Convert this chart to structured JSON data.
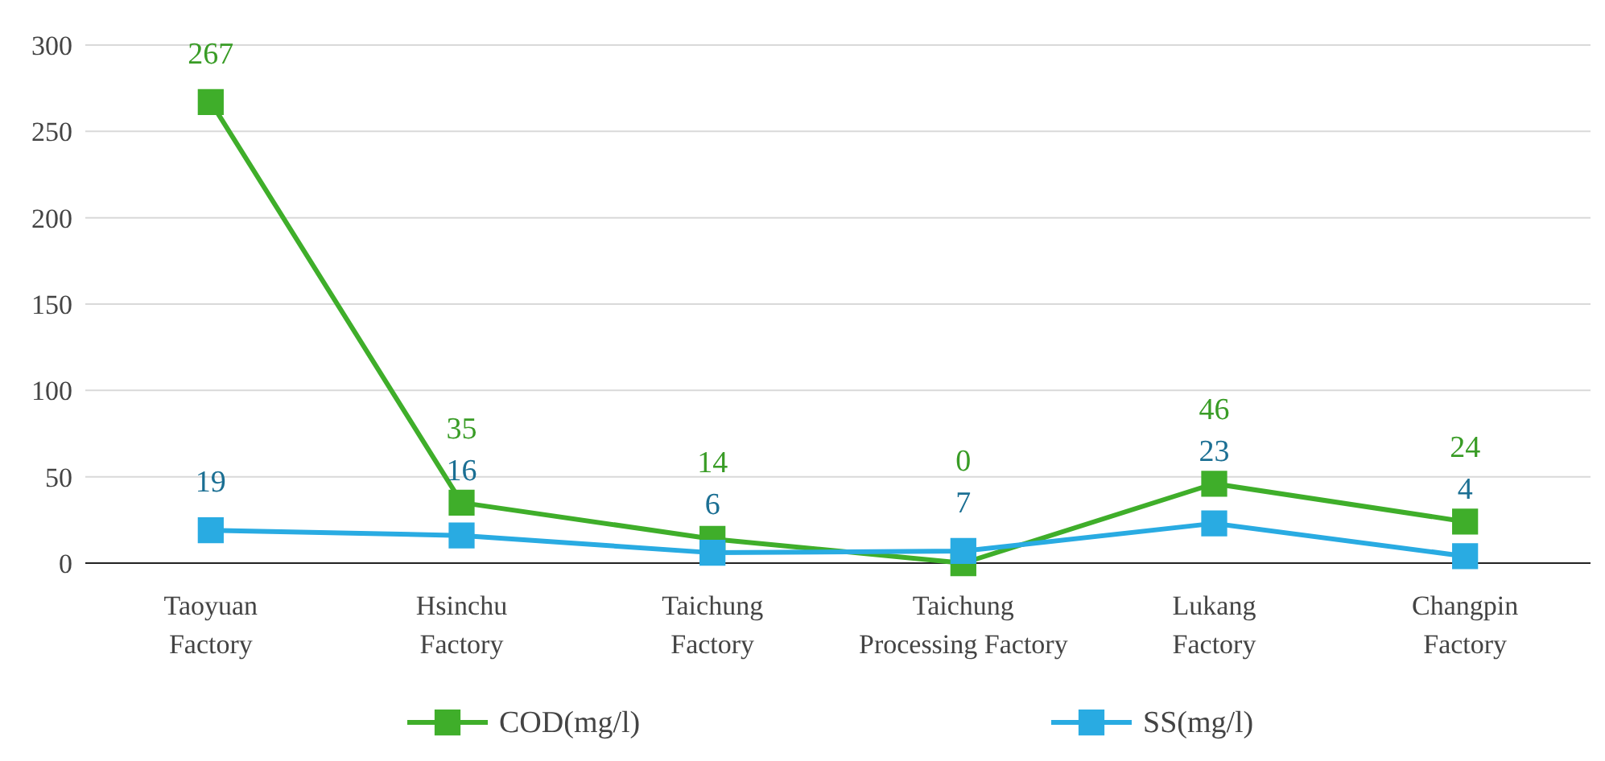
{
  "chart_data": {
    "type": "line",
    "categories": [
      "Taoyuan Factory",
      "Hsinchu Factory",
      "Taichung Factory",
      "Taichung Processing Factory",
      "Lukang Factory",
      "Changpin Factory"
    ],
    "series": [
      {
        "name": "COD(mg/l)",
        "color": "#3fae2a",
        "values": [
          267,
          35,
          14,
          0,
          46,
          24
        ]
      },
      {
        "name": "SS(mg/l)",
        "color": "#29abe2",
        "values": [
          19,
          16,
          6,
          7,
          23,
          4
        ]
      }
    ],
    "ylim": [
      0,
      300
    ],
    "yticks": [
      0,
      50,
      100,
      150,
      200,
      250,
      300
    ],
    "grid": "y",
    "legend": "bottom",
    "marker": "square",
    "data_labels": true
  }
}
